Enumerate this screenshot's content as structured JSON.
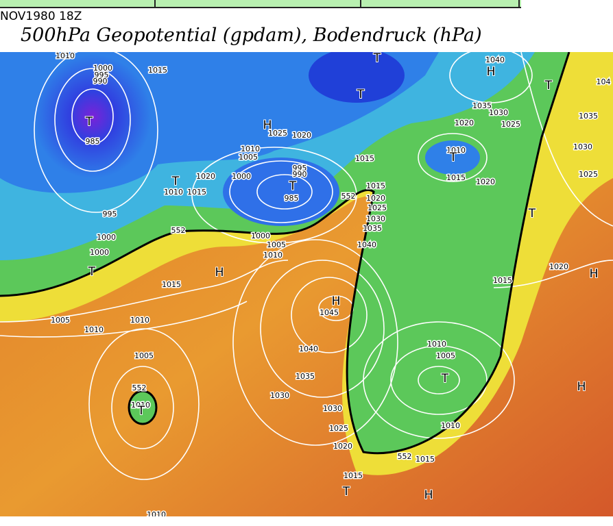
{
  "header": {
    "timestamp": "NOV1980 18Z",
    "title": "500hPa Geopotential (gpdam), Bodendruck (hPa)"
  },
  "map": {
    "centers": [
      "H",
      "H",
      "H",
      "H",
      "H",
      "H",
      "H",
      "T",
      "T",
      "T",
      "T",
      "T",
      "T",
      "T",
      "T",
      "T",
      "T",
      "T",
      "T"
    ],
    "isobars": [
      "1000",
      "995",
      "990",
      "985",
      "1015",
      "1010",
      "1025",
      "1020",
      "1010",
      "1005",
      "1000",
      "995",
      "990",
      "985",
      "1020",
      "1010",
      "1015",
      "995",
      "552",
      "1000",
      "1000",
      "1000",
      "1005",
      "1010",
      "1015",
      "1005",
      "1010",
      "1010",
      "1005",
      "552",
      "1010",
      "1045",
      "1040",
      "1035",
      "1030",
      "1030",
      "1025",
      "1020",
      "1015",
      "1010",
      "1015",
      "552",
      "1015",
      "1020",
      "1025",
      "1030",
      "1035",
      "1040",
      "1035",
      "1030",
      "1025",
      "1020",
      "1010",
      "1015",
      "1020",
      "1040",
      "1015",
      "1020",
      "1035",
      "1030",
      "1025",
      "104",
      "1010",
      "1005",
      "1010",
      "552",
      "1015"
    ]
  }
}
